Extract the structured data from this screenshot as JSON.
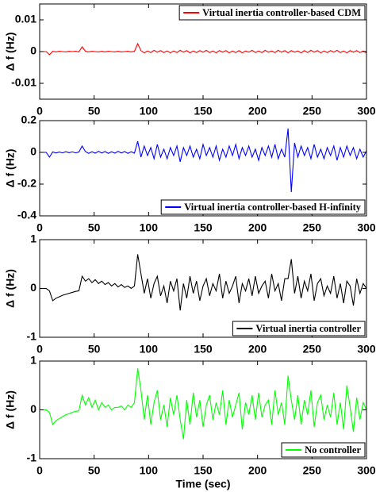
{
  "chart_data": [
    {
      "type": "line",
      "y_label": "Δ f (Hz)",
      "legend": "top-right",
      "xlim": [
        0,
        300
      ],
      "xticks": [
        0,
        50,
        100,
        150,
        200,
        250,
        300
      ],
      "ylim": [
        -0.015,
        0.015
      ],
      "yticks": [
        -0.01,
        0,
        0.01
      ],
      "x": [
        0,
        3,
        6,
        9,
        12,
        15,
        18,
        21,
        24,
        27,
        30,
        33,
        36,
        39,
        42,
        45,
        48,
        51,
        54,
        57,
        60,
        63,
        66,
        69,
        72,
        75,
        78,
        81,
        84,
        87,
        90,
        93,
        96,
        99,
        102,
        105,
        108,
        111,
        114,
        117,
        120,
        123,
        126,
        129,
        132,
        135,
        138,
        141,
        144,
        147,
        150,
        153,
        156,
        159,
        162,
        165,
        168,
        171,
        174,
        177,
        180,
        183,
        186,
        189,
        192,
        195,
        198,
        201,
        204,
        207,
        210,
        213,
        216,
        219,
        222,
        225,
        228,
        231,
        234,
        237,
        240,
        243,
        246,
        249,
        252,
        255,
        258,
        261,
        264,
        267,
        270,
        273,
        276,
        279,
        282,
        285,
        288,
        291,
        294,
        297,
        300
      ],
      "series": [
        {
          "name": "Virtual inertia controller-based CDM",
          "color": "#ff0000",
          "values": [
            0,
            0,
            0,
            -0.001,
            0.0001,
            -0.0001,
            0.0001,
            0,
            -0.0001,
            0.0001,
            0,
            0.0001,
            -0.0001,
            0.0015,
            0.0001,
            -0.0001,
            0.0001,
            0,
            -0.0001,
            0.0001,
            -0.0001,
            0.0001,
            0,
            -0.0001,
            0.0001,
            -0.0001,
            0,
            0.0001,
            -0.0001,
            0.0001,
            0.0025,
            0.0003,
            -0.0004,
            0.0002,
            -0.0003,
            0.0004,
            -0.0002,
            0.0003,
            -0.0003,
            0.0002,
            -0.0004,
            0.0002,
            -0.0003,
            0.0004,
            -0.0002,
            0.0003,
            -0.0004,
            0.0002,
            -0.0003,
            0.0003,
            -0.0002,
            0.0004,
            -0.0003,
            0.0002,
            -0.0004,
            0.0003,
            -0.0002,
            0.0003,
            -0.0004,
            0.0002,
            -0.0003,
            0.0003,
            -0.0004,
            0.0002,
            -0.0002,
            0.0004,
            -0.0003,
            0.0002,
            -0.0003,
            0.0004,
            -0.0002,
            0.0002,
            -0.0003,
            0.0004,
            -0.0002,
            0.0003,
            -0.0004,
            0.0003,
            -0.0002,
            0.0002,
            -0.0004,
            0.0003,
            -0.0003,
            0.0004,
            -0.0002,
            0.0003,
            -0.0004,
            0.0002,
            -0.0003,
            0.0003,
            -0.0002,
            0.0004,
            -0.0003,
            0.0002,
            -0.0004,
            0.0003,
            -0.0002,
            0.0003,
            -0.0003,
            0.0002,
            -0.0004
          ]
        }
      ]
    },
    {
      "type": "line",
      "y_label": "Δ f (Hz)",
      "legend": "bottom-right",
      "xlim": [
        0,
        300
      ],
      "xticks": [
        0,
        50,
        100,
        150,
        200,
        250,
        300
      ],
      "ylim": [
        -0.4,
        0.2
      ],
      "yticks": [
        -0.4,
        -0.2,
        0,
        0.2
      ],
      "x": [
        0,
        3,
        6,
        9,
        12,
        15,
        18,
        21,
        24,
        27,
        30,
        33,
        36,
        39,
        42,
        45,
        48,
        51,
        54,
        57,
        60,
        63,
        66,
        69,
        72,
        75,
        78,
        81,
        84,
        87,
        90,
        93,
        96,
        99,
        102,
        105,
        108,
        111,
        114,
        117,
        120,
        123,
        126,
        129,
        132,
        135,
        138,
        141,
        144,
        147,
        150,
        153,
        156,
        159,
        162,
        165,
        168,
        171,
        174,
        177,
        180,
        183,
        186,
        189,
        192,
        195,
        198,
        201,
        204,
        207,
        210,
        213,
        216,
        219,
        222,
        225,
        228,
        231,
        234,
        237,
        240,
        243,
        246,
        249,
        252,
        255,
        258,
        261,
        264,
        267,
        270,
        273,
        276,
        279,
        282,
        285,
        288,
        291,
        294,
        297,
        300
      ],
      "series": [
        {
          "name": "Virtual inertia controller-based H-infinity",
          "color": "#0000ff",
          "values": [
            0,
            0,
            0,
            -0.03,
            0.003,
            -0.004,
            0.002,
            -0.003,
            0.004,
            -0.002,
            0.003,
            -0.003,
            0.002,
            0.04,
            0.005,
            -0.006,
            0.004,
            -0.005,
            0.006,
            -0.004,
            0.005,
            -0.006,
            0.004,
            -0.005,
            0.006,
            -0.004,
            0.005,
            -0.006,
            0.004,
            -0.005,
            0.07,
            -0.03,
            0.04,
            -0.02,
            0.03,
            -0.04,
            0.05,
            -0.03,
            0.02,
            -0.04,
            0.03,
            -0.02,
            0.04,
            -0.06,
            0.03,
            -0.02,
            0.04,
            -0.03,
            0.02,
            -0.04,
            0.05,
            -0.02,
            0.03,
            -0.03,
            0.04,
            -0.05,
            0.02,
            -0.03,
            0.04,
            -0.02,
            0.05,
            -0.04,
            0.03,
            -0.02,
            0.04,
            -0.03,
            0.02,
            -0.05,
            0.03,
            -0.02,
            0.04,
            -0.03,
            0.05,
            -0.04,
            0.02,
            -0.03,
            0.15,
            -0.25,
            0.06,
            -0.03,
            0.04,
            -0.02,
            0.03,
            -0.04,
            0.05,
            -0.03,
            0.02,
            -0.04,
            0.03,
            -0.02,
            0.04,
            -0.05,
            0.03,
            -0.03,
            0.04,
            -0.02,
            0.03,
            -0.04,
            0.02,
            -0.03,
            0.01
          ]
        }
      ]
    },
    {
      "type": "line",
      "y_label": "Δ f (Hz)",
      "legend": "bottom-right",
      "xlim": [
        0,
        300
      ],
      "xticks": [
        0,
        50,
        100,
        150,
        200,
        250,
        300
      ],
      "ylim": [
        -1,
        1
      ],
      "yticks": [
        -1,
        0,
        1
      ],
      "x": [
        0,
        3,
        6,
        9,
        12,
        15,
        18,
        21,
        24,
        27,
        30,
        33,
        36,
        39,
        42,
        45,
        48,
        51,
        54,
        57,
        60,
        63,
        66,
        69,
        72,
        75,
        78,
        81,
        84,
        87,
        90,
        93,
        96,
        99,
        102,
        105,
        108,
        111,
        114,
        117,
        120,
        123,
        126,
        129,
        132,
        135,
        138,
        141,
        144,
        147,
        150,
        153,
        156,
        159,
        162,
        165,
        168,
        171,
        174,
        177,
        180,
        183,
        186,
        189,
        192,
        195,
        198,
        201,
        204,
        207,
        210,
        213,
        216,
        219,
        222,
        225,
        228,
        231,
        234,
        237,
        240,
        243,
        246,
        249,
        252,
        255,
        258,
        261,
        264,
        267,
        270,
        273,
        276,
        279,
        282,
        285,
        288,
        291,
        294,
        297,
        300
      ],
      "series": [
        {
          "name": "Virtual inertia controller",
          "color": "#000000",
          "values": [
            0,
            0,
            0,
            -0.05,
            -0.25,
            -0.2,
            -0.17,
            -0.14,
            -0.12,
            -0.1,
            -0.08,
            -0.06,
            -0.05,
            0.25,
            0.15,
            0.2,
            0.12,
            0.18,
            0.1,
            0.15,
            0.08,
            0.12,
            0.05,
            0.1,
            0.03,
            0.08,
            0.02,
            0.05,
            0,
            0.05,
            0.7,
            0.3,
            -0.1,
            0.2,
            -0.2,
            0.1,
            0.25,
            -0.15,
            0.05,
            -0.3,
            0.15,
            -0.05,
            0.2,
            -0.45,
            0.1,
            -0.2,
            0.25,
            -0.1,
            0.15,
            -0.25,
            0.05,
            0.2,
            -0.15,
            0.1,
            -0.05,
            0.3,
            -0.2,
            0.15,
            -0.1,
            0.05,
            0.25,
            -0.3,
            0.1,
            -0.05,
            0.2,
            -0.15,
            0.25,
            -0.1,
            0.05,
            0.15,
            -0.2,
            0.3,
            -0.05,
            0.1,
            -0.25,
            0.2,
            0.2,
            0.6,
            -0.1,
            0.25,
            -0.2,
            0.15,
            -0.05,
            0.3,
            -0.25,
            0.1,
            0.2,
            -0.15,
            0.05,
            -0.1,
            0.25,
            -0.2,
            0.1,
            -0.3,
            0.15,
            0.05,
            -0.35,
            0.2,
            -0.1,
            0.1,
            0
          ]
        }
      ]
    },
    {
      "type": "line",
      "y_label": "Δ f (Hz)",
      "x_label": "Time (sec)",
      "legend": "bottom-right",
      "xlim": [
        0,
        300
      ],
      "xticks": [
        0,
        50,
        100,
        150,
        200,
        250,
        300
      ],
      "ylim": [
        -1,
        1
      ],
      "yticks": [
        -1,
        0,
        1
      ],
      "x": [
        0,
        3,
        6,
        9,
        12,
        15,
        18,
        21,
        24,
        27,
        30,
        33,
        36,
        39,
        42,
        45,
        48,
        51,
        54,
        57,
        60,
        63,
        66,
        69,
        72,
        75,
        78,
        81,
        84,
        87,
        90,
        93,
        96,
        99,
        102,
        105,
        108,
        111,
        114,
        117,
        120,
        123,
        126,
        129,
        132,
        135,
        138,
        141,
        144,
        147,
        150,
        153,
        156,
        159,
        162,
        165,
        168,
        171,
        174,
        177,
        180,
        183,
        186,
        189,
        192,
        195,
        198,
        201,
        204,
        207,
        210,
        213,
        216,
        219,
        222,
        225,
        228,
        231,
        234,
        237,
        240,
        243,
        246,
        249,
        252,
        255,
        258,
        261,
        264,
        267,
        270,
        273,
        276,
        279,
        282,
        285,
        288,
        291,
        294,
        297,
        300
      ],
      "series": [
        {
          "name": "No controller",
          "color": "#00ff00",
          "values": [
            0,
            0,
            0,
            -0.05,
            -0.3,
            -0.22,
            -0.18,
            -0.14,
            -0.1,
            -0.08,
            -0.05,
            -0.03,
            -0.02,
            0.3,
            0.1,
            0.25,
            0.05,
            0.2,
            0,
            0.15,
            0.05,
            0.1,
            0,
            0.05,
            0.05,
            0.08,
            0,
            0.1,
            0.05,
            0.15,
            0.85,
            0.4,
            -0.2,
            0.3,
            -0.3,
            0.15,
            0.4,
            -0.2,
            0.1,
            -0.35,
            0.25,
            -0.1,
            0.3,
            -0.2,
            -0.6,
            0.2,
            -0.3,
            0.35,
            -0.15,
            0.2,
            -0.35,
            0.1,
            0.3,
            -0.2,
            0.15,
            -0.1,
            0.4,
            -0.3,
            0.2,
            -0.15,
            0.1,
            0.35,
            -0.4,
            0.15,
            -0.1,
            0.3,
            -0.2,
            0.35,
            -0.15,
            0.1,
            0.2,
            -0.3,
            0.4,
            -0.1,
            0.15,
            -0.3,
            0.7,
            0.2,
            -0.2,
            0.3,
            -0.3,
            0.2,
            -0.1,
            0.4,
            -0.35,
            0.15,
            0.3,
            -0.2,
            0.1,
            -0.15,
            0.35,
            -0.3,
            0.15,
            -0.4,
            0.5,
            0.05,
            -0.45,
            0.25,
            -0.2,
            0.15,
            0
          ]
        }
      ]
    }
  ]
}
